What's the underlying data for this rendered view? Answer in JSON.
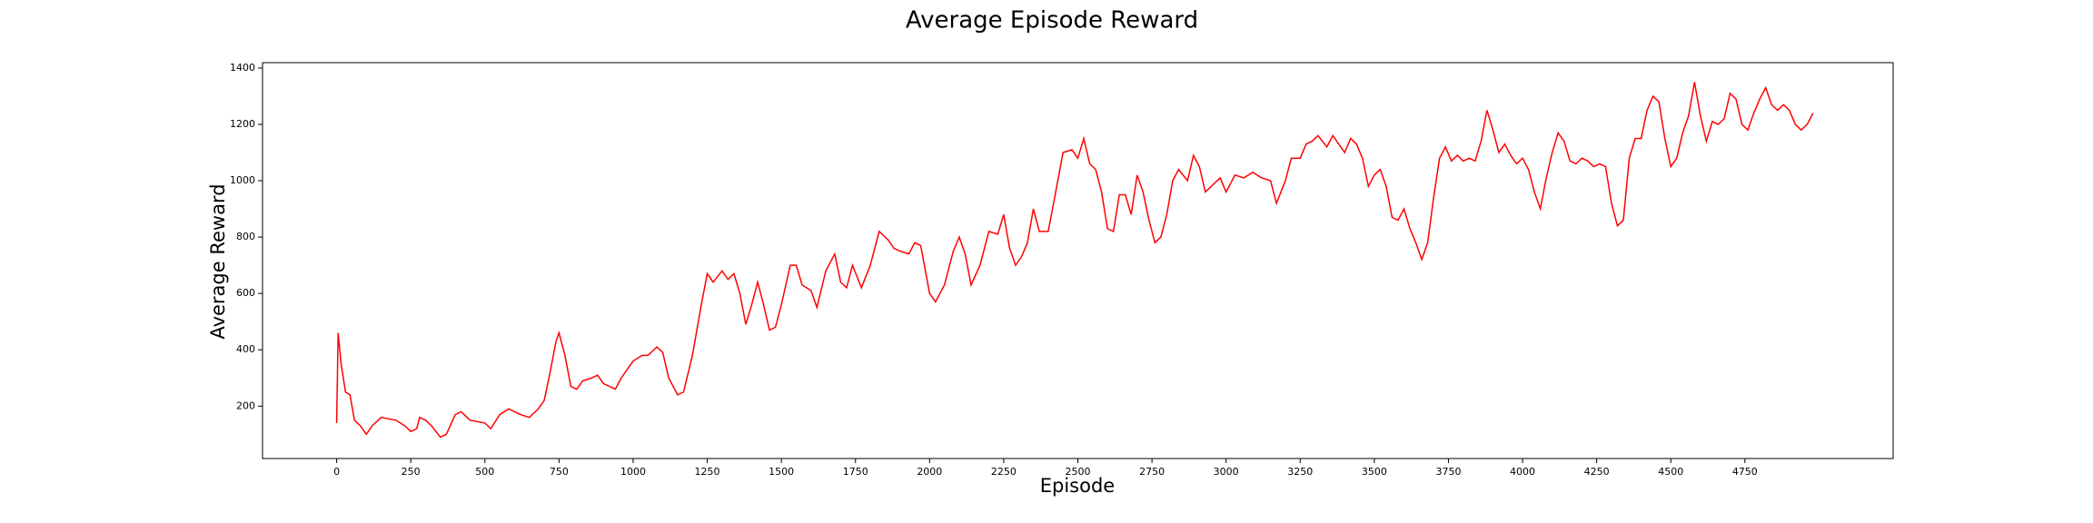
{
  "chart_data": {
    "type": "line",
    "title": "Average Episode Reward",
    "xlabel": "Episode",
    "ylabel": "Average Reward",
    "x": [
      0,
      5,
      15,
      30,
      45,
      60,
      80,
      100,
      120,
      150,
      200,
      230,
      250,
      270,
      280,
      300,
      320,
      350,
      370,
      400,
      420,
      450,
      500,
      520,
      550,
      580,
      620,
      650,
      680,
      700,
      720,
      740,
      750,
      770,
      790,
      810,
      830,
      860,
      880,
      900,
      940,
      960,
      980,
      1000,
      1030,
      1050,
      1080,
      1100,
      1120,
      1150,
      1170,
      1200,
      1230,
      1250,
      1270,
      1300,
      1320,
      1340,
      1360,
      1380,
      1400,
      1420,
      1440,
      1460,
      1480,
      1500,
      1530,
      1550,
      1570,
      1600,
      1620,
      1650,
      1680,
      1700,
      1720,
      1740,
      1770,
      1800,
      1830,
      1860,
      1880,
      1900,
      1930,
      1950,
      1970,
      2000,
      2020,
      2050,
      2080,
      2100,
      2120,
      2140,
      2170,
      2200,
      2230,
      2250,
      2270,
      2290,
      2310,
      2330,
      2350,
      2370,
      2400,
      2420,
      2450,
      2480,
      2500,
      2520,
      2540,
      2560,
      2580,
      2600,
      2620,
      2640,
      2660,
      2680,
      2700,
      2720,
      2740,
      2760,
      2780,
      2800,
      2820,
      2840,
      2870,
      2890,
      2910,
      2930,
      2960,
      2980,
      3000,
      3030,
      3060,
      3090,
      3120,
      3150,
      3170,
      3200,
      3220,
      3250,
      3270,
      3290,
      3310,
      3340,
      3360,
      3380,
      3400,
      3420,
      3440,
      3460,
      3480,
      3500,
      3520,
      3540,
      3560,
      3580,
      3600,
      3620,
      3640,
      3660,
      3680,
      3700,
      3720,
      3740,
      3760,
      3780,
      3800,
      3820,
      3840,
      3860,
      3880,
      3900,
      3920,
      3940,
      3960,
      3980,
      4000,
      4020,
      4040,
      4060,
      4080,
      4100,
      4120,
      4140,
      4160,
      4180,
      4200,
      4220,
      4240,
      4260,
      4280,
      4300,
      4320,
      4340,
      4360,
      4380,
      4400,
      4420,
      4440,
      4460,
      4480,
      4500,
      4520,
      4540,
      4560,
      4580,
      4600,
      4620,
      4640,
      4660,
      4680,
      4700,
      4720,
      4740,
      4760,
      4780,
      4800,
      4820,
      4840,
      4860,
      4880,
      4900,
      4920,
      4940,
      4960,
      4980
    ],
    "series": [
      {
        "color": "#ff0000",
        "values": [
          140,
          460,
          350,
          250,
          240,
          150,
          130,
          100,
          130,
          160,
          150,
          130,
          110,
          120,
          160,
          150,
          130,
          90,
          100,
          170,
          180,
          150,
          140,
          120,
          170,
          190,
          170,
          160,
          190,
          220,
          320,
          430,
          460,
          380,
          270,
          260,
          290,
          300,
          310,
          280,
          260,
          300,
          330,
          360,
          380,
          380,
          410,
          390,
          300,
          240,
          250,
          380,
          560,
          670,
          640,
          680,
          650,
          670,
          600,
          490,
          560,
          640,
          560,
          470,
          480,
          560,
          700,
          700,
          630,
          610,
          550,
          680,
          740,
          640,
          620,
          700,
          620,
          700,
          820,
          790,
          760,
          750,
          740,
          780,
          770,
          600,
          570,
          630,
          750,
          800,
          740,
          630,
          700,
          820,
          810,
          880,
          760,
          700,
          730,
          780,
          900,
          820,
          820,
          930,
          1100,
          1110,
          1080,
          1150,
          1060,
          1040,
          960,
          830,
          820,
          950,
          950,
          880,
          1020,
          960,
          860,
          780,
          800,
          880,
          1000,
          1040,
          1000,
          1090,
          1050,
          960,
          990,
          1010,
          960,
          1020,
          1010,
          1030,
          1010,
          1000,
          920,
          1000,
          1080,
          1080,
          1130,
          1140,
          1160,
          1120,
          1160,
          1130,
          1100,
          1150,
          1130,
          1080,
          980,
          1020,
          1040,
          980,
          870,
          860,
          900,
          830,
          780,
          720,
          780,
          940,
          1080,
          1120,
          1070,
          1090,
          1070,
          1080,
          1070,
          1140,
          1250,
          1180,
          1100,
          1130,
          1090,
          1060,
          1080,
          1040,
          960,
          900,
          1010,
          1100,
          1170,
          1140,
          1070,
          1060,
          1080,
          1070,
          1050,
          1060,
          1050,
          920,
          840,
          860,
          1080,
          1150,
          1150,
          1250,
          1300,
          1280,
          1150,
          1050,
          1080,
          1170,
          1230,
          1350,
          1230,
          1140,
          1210,
          1200,
          1220,
          1310,
          1290,
          1200,
          1180,
          1240,
          1290,
          1330,
          1270,
          1250,
          1270,
          1250,
          1200,
          1180,
          1200,
          1240
        ]
      }
    ],
    "xlim": [
      -250,
      5250
    ],
    "ylim": [
      14,
      1419
    ],
    "xticks": [
      0,
      250,
      500,
      750,
      1000,
      1250,
      1500,
      1750,
      2000,
      2250,
      2500,
      2750,
      3000,
      3250,
      3500,
      3750,
      4000,
      4250,
      4500,
      4750
    ],
    "yticks": [
      200,
      400,
      600,
      800,
      1000,
      1200,
      1400
    ]
  }
}
